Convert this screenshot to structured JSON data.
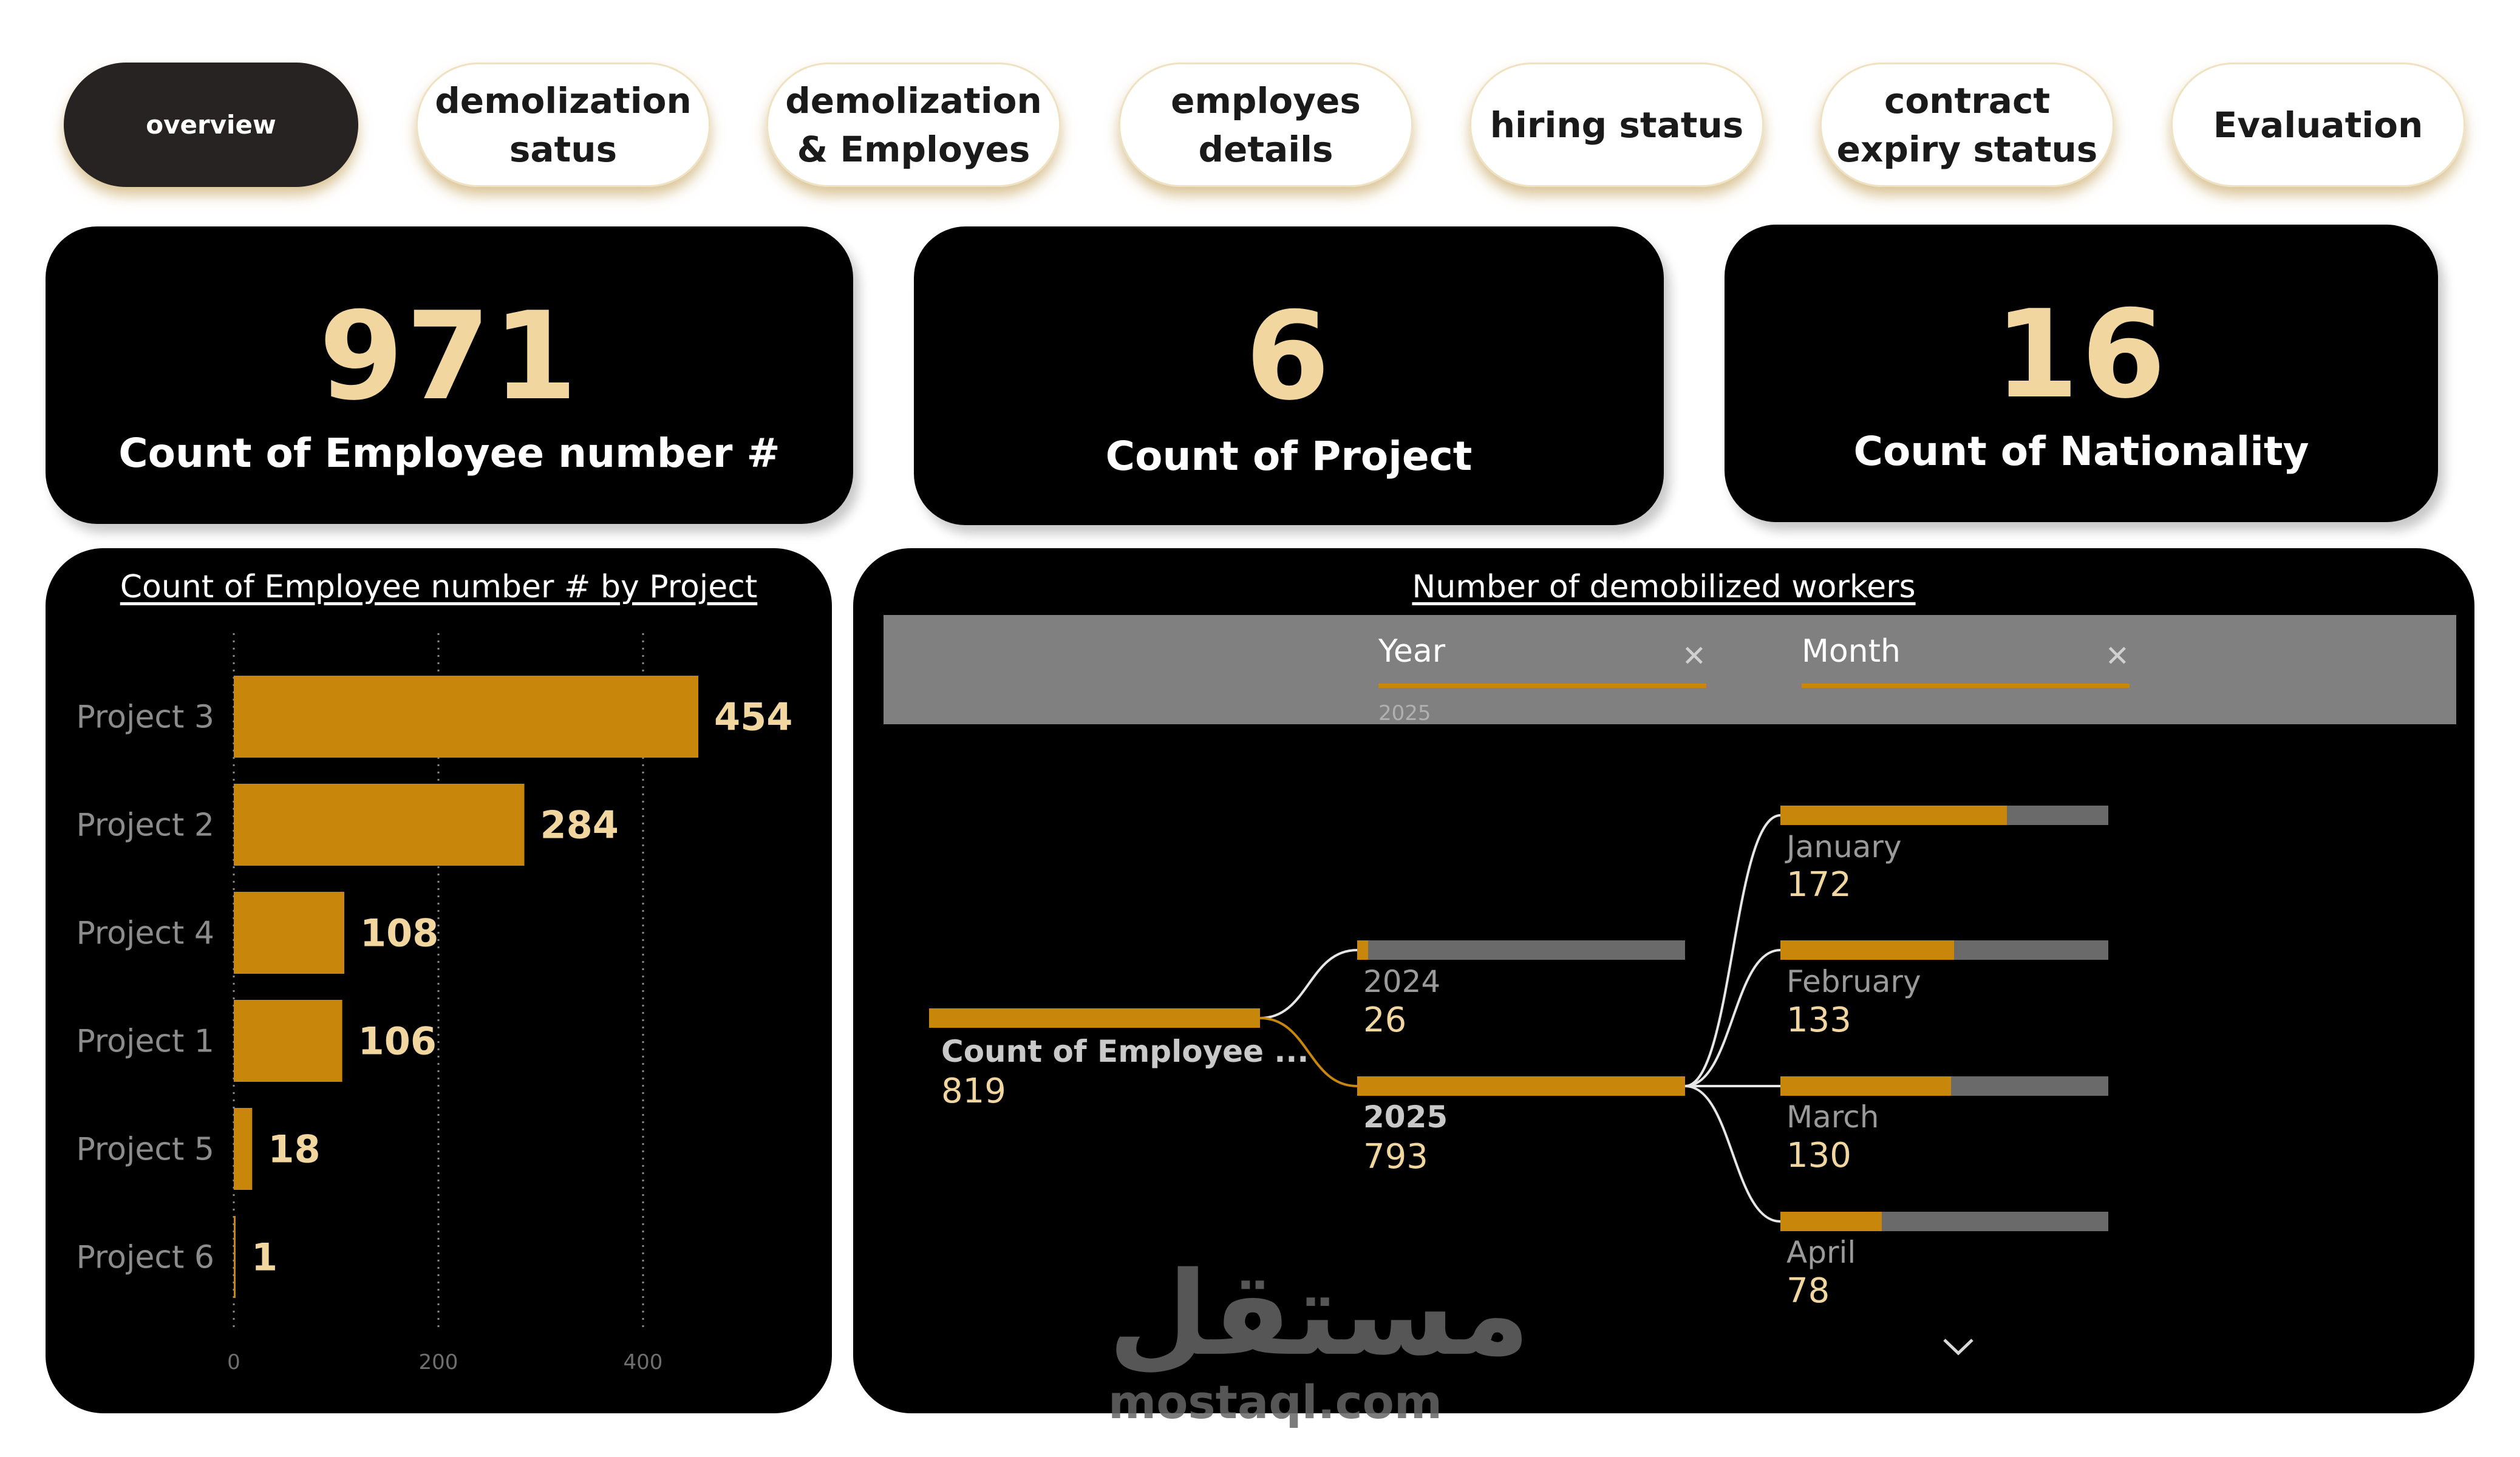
{
  "nav": {
    "tabs": [
      {
        "label": "overview",
        "active": true
      },
      {
        "label": "demolization satus",
        "active": false
      },
      {
        "label": "demolization & Employes",
        "active": false
      },
      {
        "label": "employes details",
        "active": false
      },
      {
        "label": "hiring status",
        "active": false
      },
      {
        "label": "contract expiry status",
        "active": false
      },
      {
        "label": "Evaluation",
        "active": false
      }
    ]
  },
  "kpis": [
    {
      "value": "971",
      "label": "Count of Employee number #"
    },
    {
      "value": "6",
      "label": "Count of Project"
    },
    {
      "value": "16",
      "label": "Count of Nationality"
    }
  ],
  "colors": {
    "accent": "#c8860a",
    "value_text": "#f2d6a0",
    "track": "#6a6a6a",
    "panel_bg": "#000000"
  },
  "chart_data": {
    "type": "bar",
    "orientation": "horizontal",
    "title": "Count of Employee number # by Project",
    "categories": [
      "Project 3",
      "Project 2",
      "Project 4",
      "Project 1",
      "Project 5",
      "Project 6"
    ],
    "values": [
      454,
      284,
      108,
      106,
      18,
      1
    ],
    "data_labels": [
      "454",
      "284",
      "108",
      "106",
      "18",
      "1"
    ],
    "x_ticks": [
      0,
      200,
      400
    ],
    "xlim": [
      0,
      460
    ],
    "grid": "vertical dotted"
  },
  "decomp": {
    "title": "Number of demobilized workers",
    "filters": [
      {
        "label": "Year",
        "value": "2025",
        "clear_icon": "close-icon"
      },
      {
        "label": "Month",
        "value": "",
        "clear_icon": "close-icon"
      }
    ],
    "root": {
      "label": "Count of Employee ...",
      "value": "819",
      "share": 1.0
    },
    "years": [
      {
        "label": "2024",
        "value": "26",
        "share": 0.033,
        "selected": false
      },
      {
        "label": "2025",
        "value": "793",
        "share": 1.0,
        "selected": true
      }
    ],
    "months": [
      {
        "label": "January",
        "value": "172",
        "share": 0.69
      },
      {
        "label": "February",
        "value": "133",
        "share": 0.53
      },
      {
        "label": "March",
        "value": "130",
        "share": 0.52
      },
      {
        "label": "April",
        "value": "78",
        "share": 0.31
      }
    ],
    "more_icon": "chevron-down-icon"
  },
  "watermark": {
    "arabic": "مستقل",
    "latin": "mostaql.com"
  }
}
